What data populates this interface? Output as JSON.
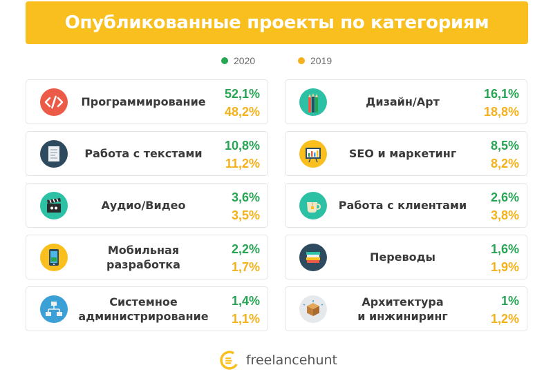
{
  "title": "Опубликованные проекты по категориям",
  "colors": {
    "header_bg": "#f9bf1e",
    "series_2020": "#27a454",
    "series_2019": "#f3b11b"
  },
  "brand": {
    "name": "freelancehunt",
    "icon": "freelancehunt-logo-icon"
  },
  "chart_data": {
    "type": "table",
    "title": "Опубликованные проекты по категориям",
    "legend_placement": "top-center",
    "series": [
      {
        "name": "2020",
        "color": "#27a454"
      },
      {
        "name": "2019",
        "color": "#f3b11b"
      }
    ],
    "categories": [
      {
        "label": "Программирование",
        "icon": "code-icon",
        "v2020": "52,1%",
        "v2019": "48,2%"
      },
      {
        "label": "Работа с текстами",
        "icon": "document-icon",
        "v2020": "10,8%",
        "v2019": "11,2%"
      },
      {
        "label": "Аудио/Видео",
        "icon": "clapperboard-icon",
        "v2020": "3,6%",
        "v2019": "3,5%"
      },
      {
        "label": "Мобильная разработка",
        "icon": "smartphone-icon",
        "v2020": "2,2%",
        "v2019": "1,7%"
      },
      {
        "label": "Системное\nадминистрирование",
        "icon": "network-icon",
        "v2020": "1,4%",
        "v2019": "1,1%"
      },
      {
        "label": "Дизайн/Арт",
        "icon": "pencils-icon",
        "v2020": "16,1%",
        "v2019": "18,8%"
      },
      {
        "label": "SEO и маркетинг",
        "icon": "presentation-board-icon",
        "v2020": "8,5%",
        "v2019": "8,2%"
      },
      {
        "label": "Работа с клиентами",
        "icon": "tea-cup-icon",
        "v2020": "2,6%",
        "v2019": "3,8%"
      },
      {
        "label": "Переводы",
        "icon": "books-icon",
        "v2020": "1,6%",
        "v2019": "1,9%"
      },
      {
        "label": "Архитектура\nи инжиниринг",
        "icon": "box-3d-icon",
        "v2020": "1%",
        "v2019": "1,2%"
      }
    ]
  }
}
